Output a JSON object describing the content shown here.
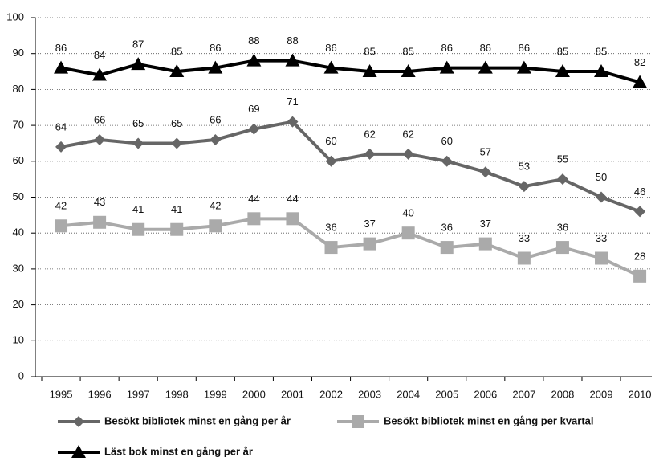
{
  "chart_data": {
    "type": "line",
    "categories": [
      "1995",
      "1996",
      "1997",
      "1998",
      "1999",
      "2000",
      "2001",
      "2002",
      "2003",
      "2004",
      "2005",
      "2006",
      "2007",
      "2008",
      "2009",
      "2010"
    ],
    "series": [
      {
        "name": "Besökt bibliotek minst en gång per år",
        "color": "#666666",
        "marker": "diamond",
        "values": [
          64,
          66,
          65,
          65,
          66,
          69,
          71,
          60,
          62,
          62,
          60,
          57,
          53,
          55,
          50,
          46
        ]
      },
      {
        "name": "Besökt bibliotek minst en gång per kvartal",
        "color": "#aaaaaa",
        "marker": "square",
        "values": [
          42,
          43,
          41,
          41,
          42,
          44,
          44,
          36,
          37,
          40,
          36,
          37,
          33,
          36,
          33,
          28
        ]
      },
      {
        "name": "Läst bok minst en gång per år",
        "color": "#000000",
        "marker": "triangle",
        "values": [
          86,
          84,
          87,
          85,
          86,
          88,
          88,
          86,
          85,
          85,
          86,
          86,
          86,
          85,
          85,
          82
        ]
      }
    ],
    "ylim": [
      0,
      100
    ],
    "yticks": [
      0,
      10,
      20,
      30,
      40,
      50,
      60,
      70,
      80,
      90,
      100
    ],
    "grid": true
  }
}
